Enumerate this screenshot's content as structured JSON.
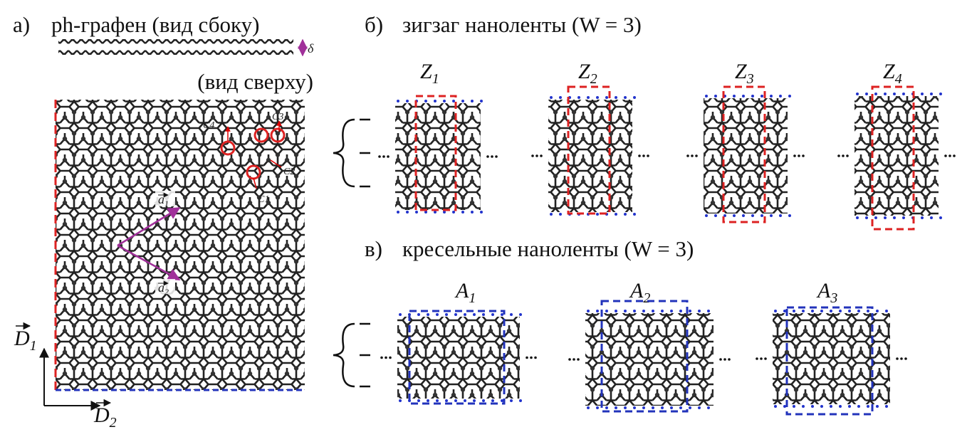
{
  "panel_a": {
    "label": "а)",
    "title": "ph-графен (вид сбоку)",
    "thickness": "δ",
    "top_view": "(вид сверху)",
    "atoms": [
      "C4",
      "C3",
      "C2",
      "C1"
    ],
    "vectors": [
      {
        "symbol": "a",
        "index": "1"
      },
      {
        "symbol": "a",
        "index": "2"
      }
    ],
    "directions": [
      {
        "symbol": "D",
        "index": "1"
      },
      {
        "symbol": "D",
        "index": "2"
      }
    ]
  },
  "panel_b": {
    "label": "б)",
    "title": "зигзаг наноленты (W = 3)",
    "ribbons": [
      {
        "symbol": "Z",
        "index": "1"
      },
      {
        "symbol": "Z",
        "index": "2"
      },
      {
        "symbol": "Z",
        "index": "3"
      },
      {
        "symbol": "Z",
        "index": "4"
      }
    ]
  },
  "panel_c": {
    "label": "в)",
    "title": "кресельные наноленты (W = 3)",
    "ribbons": [
      {
        "symbol": "A",
        "index": "1"
      },
      {
        "symbol": "A",
        "index": "2"
      },
      {
        "symbol": "A",
        "index": "3"
      }
    ]
  }
}
